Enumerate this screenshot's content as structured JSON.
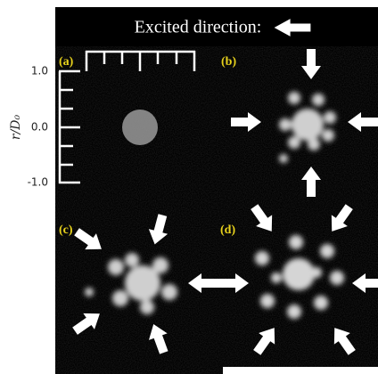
{
  "header": {
    "title": "Excited direction:"
  },
  "axis": {
    "label": "r/D₀",
    "ticks": [
      "1.0",
      "0.0",
      "-1.0"
    ]
  },
  "panels": [
    {
      "label": "(a)"
    },
    {
      "label": "(b)"
    },
    {
      "label": "(c)"
    },
    {
      "label": "(d)"
    }
  ]
}
